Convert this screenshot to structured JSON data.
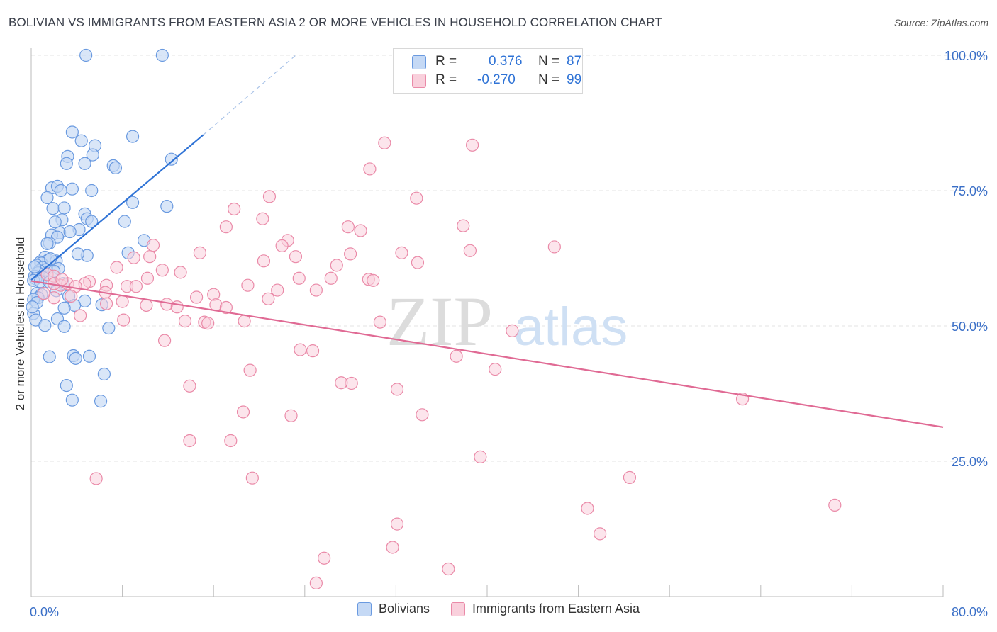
{
  "header": {
    "title": "BOLIVIAN VS IMMIGRANTS FROM EASTERN ASIA 2 OR MORE VEHICLES IN HOUSEHOLD CORRELATION CHART",
    "source": "Source: ZipAtlas.com"
  },
  "stats": {
    "blue": {
      "r_label": "R =",
      "r_value": "0.376",
      "n_label": "N =",
      "n_value": "87"
    },
    "pink": {
      "r_label": "R =",
      "r_value": "-0.270",
      "n_label": "N =",
      "n_value": "99"
    }
  },
  "watermark": {
    "zip": "ZIP",
    "atlas": "atlas"
  },
  "colors": {
    "blue_fill": "#c5d9f5",
    "blue_stroke": "#6a9ae0",
    "blue_line": "#2f73d6",
    "pink_fill": "#f9d0dc",
    "pink_stroke": "#ea8aa8",
    "pink_line": "#e06a94",
    "tick_text": "#3a6fc7",
    "grid": "#e3e3e3"
  },
  "chart_data": {
    "type": "scatter",
    "ylabel": "2 or more Vehicles in Household",
    "xlim": [
      0,
      80
    ],
    "ylim": [
      0,
      100
    ],
    "x_tick_labels": [
      {
        "value": 0,
        "label": "0.0%"
      },
      {
        "value": 80,
        "label": "80.0%"
      }
    ],
    "y_tick_labels": [
      {
        "value": 25,
        "label": "25.0%"
      },
      {
        "value": 50,
        "label": "50.0%"
      },
      {
        "value": 75,
        "label": "75.0%"
      },
      {
        "value": 100,
        "label": "100.0%"
      }
    ],
    "grid": true,
    "legend": [
      "Bolivians",
      "Immigrants from Eastern Asia"
    ],
    "series": [
      {
        "name": "Bolivians",
        "trend": {
          "x0": 0,
          "y0": 58.5,
          "x1": 15.1,
          "y1": 85.3,
          "dash_to_x": 23.2,
          "dash_to_y": 100
        },
        "points": [
          [
            4.8,
            100
          ],
          [
            11.5,
            100
          ],
          [
            3.6,
            85.8
          ],
          [
            8.9,
            85
          ],
          [
            4.4,
            84.2
          ],
          [
            5.6,
            83.3
          ],
          [
            3.2,
            81.3
          ],
          [
            5.4,
            81.6
          ],
          [
            12.3,
            80.8
          ],
          [
            4.7,
            80
          ],
          [
            3.1,
            80
          ],
          [
            7.2,
            79.6
          ],
          [
            7.4,
            79.2
          ],
          [
            1.8,
            75.5
          ],
          [
            2.3,
            75.8
          ],
          [
            3.6,
            75.3
          ],
          [
            5.3,
            75
          ],
          [
            2.6,
            75
          ],
          [
            1.4,
            73.7
          ],
          [
            8.9,
            72.8
          ],
          [
            11.9,
            72.1
          ],
          [
            1.9,
            71.7
          ],
          [
            2.9,
            71.8
          ],
          [
            4.7,
            70.7
          ],
          [
            2.7,
            69.6
          ],
          [
            4.9,
            69.8
          ],
          [
            5.3,
            69.3
          ],
          [
            8.2,
            69.3
          ],
          [
            2.1,
            69.2
          ],
          [
            4.2,
            67.8
          ],
          [
            2.5,
            67.2
          ],
          [
            1.8,
            66.8
          ],
          [
            2.3,
            66.4
          ],
          [
            1.6,
            65.3
          ],
          [
            1.4,
            65.2
          ],
          [
            9.9,
            65.8
          ],
          [
            8.5,
            63.5
          ],
          [
            4.9,
            63
          ],
          [
            1.2,
            62.7
          ],
          [
            1.5,
            62.2
          ],
          [
            2.2,
            62
          ],
          [
            0.8,
            61.8
          ],
          [
            0.9,
            61.6
          ],
          [
            0.5,
            61.2
          ],
          [
            1.0,
            60.8
          ],
          [
            1.3,
            60.4
          ],
          [
            0.7,
            60.2
          ],
          [
            2.4,
            60.6
          ],
          [
            0.6,
            59.8
          ],
          [
            0.3,
            59.2
          ],
          [
            1.0,
            59.0
          ],
          [
            0.4,
            58.7
          ],
          [
            0.2,
            58.4
          ],
          [
            0.8,
            58.2
          ],
          [
            1.6,
            58.1
          ],
          [
            2.8,
            57.8
          ],
          [
            2.2,
            56.5
          ],
          [
            0.5,
            56
          ],
          [
            0.9,
            55.8
          ],
          [
            0.6,
            55.2
          ],
          [
            3.3,
            55.5
          ],
          [
            0.2,
            54.9
          ],
          [
            4.7,
            54.6
          ],
          [
            0.5,
            54.3
          ],
          [
            3.8,
            53.8
          ],
          [
            2.9,
            53.3
          ],
          [
            6.2,
            53.9
          ],
          [
            0.2,
            52.3
          ],
          [
            2.3,
            51.3
          ],
          [
            0.4,
            51.1
          ],
          [
            1.2,
            50.1
          ],
          [
            2.9,
            49.9
          ],
          [
            1.6,
            44.3
          ],
          [
            3.7,
            44.5
          ],
          [
            3.9,
            44
          ],
          [
            5.1,
            44.4
          ],
          [
            6.4,
            41.1
          ],
          [
            3.1,
            39
          ],
          [
            3.6,
            36.3
          ],
          [
            6.1,
            36.1
          ],
          [
            6.8,
            49.6
          ],
          [
            0.1,
            53.5
          ],
          [
            1.7,
            62.4
          ],
          [
            2.0,
            60.1
          ],
          [
            3.4,
            67.4
          ],
          [
            4.1,
            63.3
          ],
          [
            0.3,
            60.9
          ]
        ]
      },
      {
        "name": "Immigrants from Eastern Asia",
        "trend": {
          "x0": 0,
          "y0": 58.3,
          "x1": 80,
          "y1": 31.3
        },
        "points": [
          [
            43.1,
            100
          ],
          [
            31,
            83.8
          ],
          [
            38.7,
            83.4
          ],
          [
            29.7,
            79
          ],
          [
            20.9,
            73.9
          ],
          [
            33.8,
            73.6
          ],
          [
            17.8,
            71.6
          ],
          [
            20.3,
            69.8
          ],
          [
            17.1,
            68.3
          ],
          [
            27.8,
            68.3
          ],
          [
            28.9,
            67.6
          ],
          [
            37.9,
            68.5
          ],
          [
            22.5,
            65.8
          ],
          [
            22,
            64.8
          ],
          [
            10.7,
            64.9
          ],
          [
            45.9,
            64.6
          ],
          [
            14.8,
            63.5
          ],
          [
            32.5,
            63.5
          ],
          [
            38.5,
            63.9
          ],
          [
            28,
            63.3
          ],
          [
            9,
            62.6
          ],
          [
            20.4,
            62
          ],
          [
            10.4,
            62.8
          ],
          [
            23.2,
            62.8
          ],
          [
            33.9,
            61.7
          ],
          [
            7.5,
            60.8
          ],
          [
            11.5,
            60.3
          ],
          [
            13.1,
            59.9
          ],
          [
            1.4,
            59.5
          ],
          [
            2,
            59.2
          ],
          [
            23.5,
            58.8
          ],
          [
            26.3,
            58.8
          ],
          [
            29.6,
            58.6
          ],
          [
            30,
            58.4
          ],
          [
            10.2,
            58.8
          ],
          [
            5.1,
            58.2
          ],
          [
            4.7,
            57.8
          ],
          [
            2.6,
            57.5
          ],
          [
            3.2,
            57.8
          ],
          [
            6.6,
            57.5
          ],
          [
            2,
            57.8
          ],
          [
            3.9,
            57.3
          ],
          [
            8.4,
            57.3
          ],
          [
            9.2,
            57.3
          ],
          [
            19,
            57.5
          ],
          [
            21.6,
            56.6
          ],
          [
            25,
            56.6
          ],
          [
            6.5,
            56.2
          ],
          [
            16,
            55.8
          ],
          [
            3.5,
            55.5
          ],
          [
            2,
            55.2
          ],
          [
            20.8,
            55
          ],
          [
            6.6,
            54.1
          ],
          [
            11.9,
            54
          ],
          [
            16.2,
            53.9
          ],
          [
            10.1,
            53.8
          ],
          [
            12.8,
            53.5
          ],
          [
            17.1,
            53.4
          ],
          [
            4.3,
            51.9
          ],
          [
            8.1,
            51.1
          ],
          [
            13.5,
            50.9
          ],
          [
            15.2,
            50.7
          ],
          [
            15.5,
            50.5
          ],
          [
            18.7,
            50.9
          ],
          [
            30.6,
            50.7
          ],
          [
            42.2,
            49.1
          ],
          [
            11.7,
            47.3
          ],
          [
            23.6,
            45.6
          ],
          [
            24.7,
            45.4
          ],
          [
            37.3,
            44.4
          ],
          [
            19.2,
            41.8
          ],
          [
            40.7,
            42
          ],
          [
            28.1,
            39.4
          ],
          [
            27.2,
            39.5
          ],
          [
            13.9,
            38.9
          ],
          [
            32.1,
            38.3
          ],
          [
            62.4,
            36.5
          ],
          [
            18.6,
            34.1
          ],
          [
            22.8,
            33.4
          ],
          [
            34.3,
            33.6
          ],
          [
            13.9,
            28.8
          ],
          [
            17.5,
            28.8
          ],
          [
            39.4,
            25.8
          ],
          [
            5.7,
            21.8
          ],
          [
            19.4,
            21.9
          ],
          [
            52.5,
            22
          ],
          [
            48.8,
            16.3
          ],
          [
            70.5,
            16.9
          ],
          [
            49.9,
            11.6
          ],
          [
            32.1,
            13.4
          ],
          [
            31.7,
            9.1
          ],
          [
            25.7,
            7.1
          ],
          [
            36.6,
            5.1
          ],
          [
            25,
            2.5
          ],
          [
            1.1,
            56
          ],
          [
            2.7,
            58.6
          ],
          [
            8.0,
            54.5
          ],
          [
            14.5,
            55.3
          ],
          [
            26.8,
            61.2
          ]
        ]
      }
    ]
  }
}
